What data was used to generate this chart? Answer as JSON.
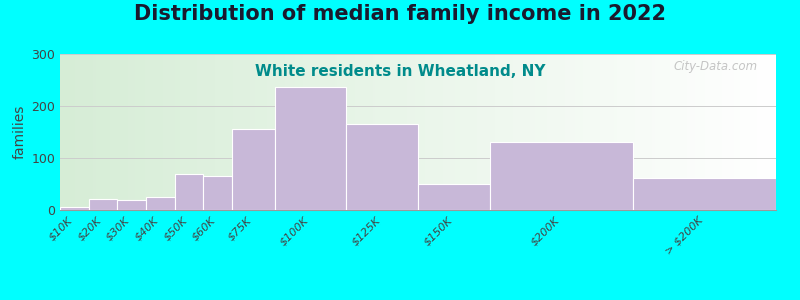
{
  "title": "Distribution of median family income in 2022",
  "subtitle": "White residents in Wheatland, NY",
  "ylabel": "families",
  "background_outer": "#00FFFF",
  "bar_color": "#C8B8D8",
  "bar_edgecolor": "#FFFFFF",
  "bin_edges": [
    0,
    10,
    20,
    30,
    40,
    50,
    60,
    75,
    100,
    125,
    150,
    200,
    250
  ],
  "bin_labels": [
    "$10K",
    "$20K",
    "$30K",
    "$40K",
    "$50K",
    "$60K",
    "$75K",
    "$100K",
    "$125K",
    "$150K",
    "$200K",
    "> $200K"
  ],
  "values": [
    5,
    22,
    20,
    25,
    70,
    65,
    155,
    237,
    165,
    50,
    130,
    62
  ],
  "ylim": [
    0,
    300
  ],
  "yticks": [
    0,
    100,
    200,
    300
  ],
  "title_fontsize": 15,
  "subtitle_fontsize": 11,
  "subtitle_color": "#008B8B",
  "watermark": "City-Data.com",
  "grid_color": "#CCCCCC",
  "label_tick_positions": [
    5,
    15,
    25,
    35,
    45,
    55,
    67.5,
    87.5,
    112.5,
    137.5,
    175,
    225
  ]
}
